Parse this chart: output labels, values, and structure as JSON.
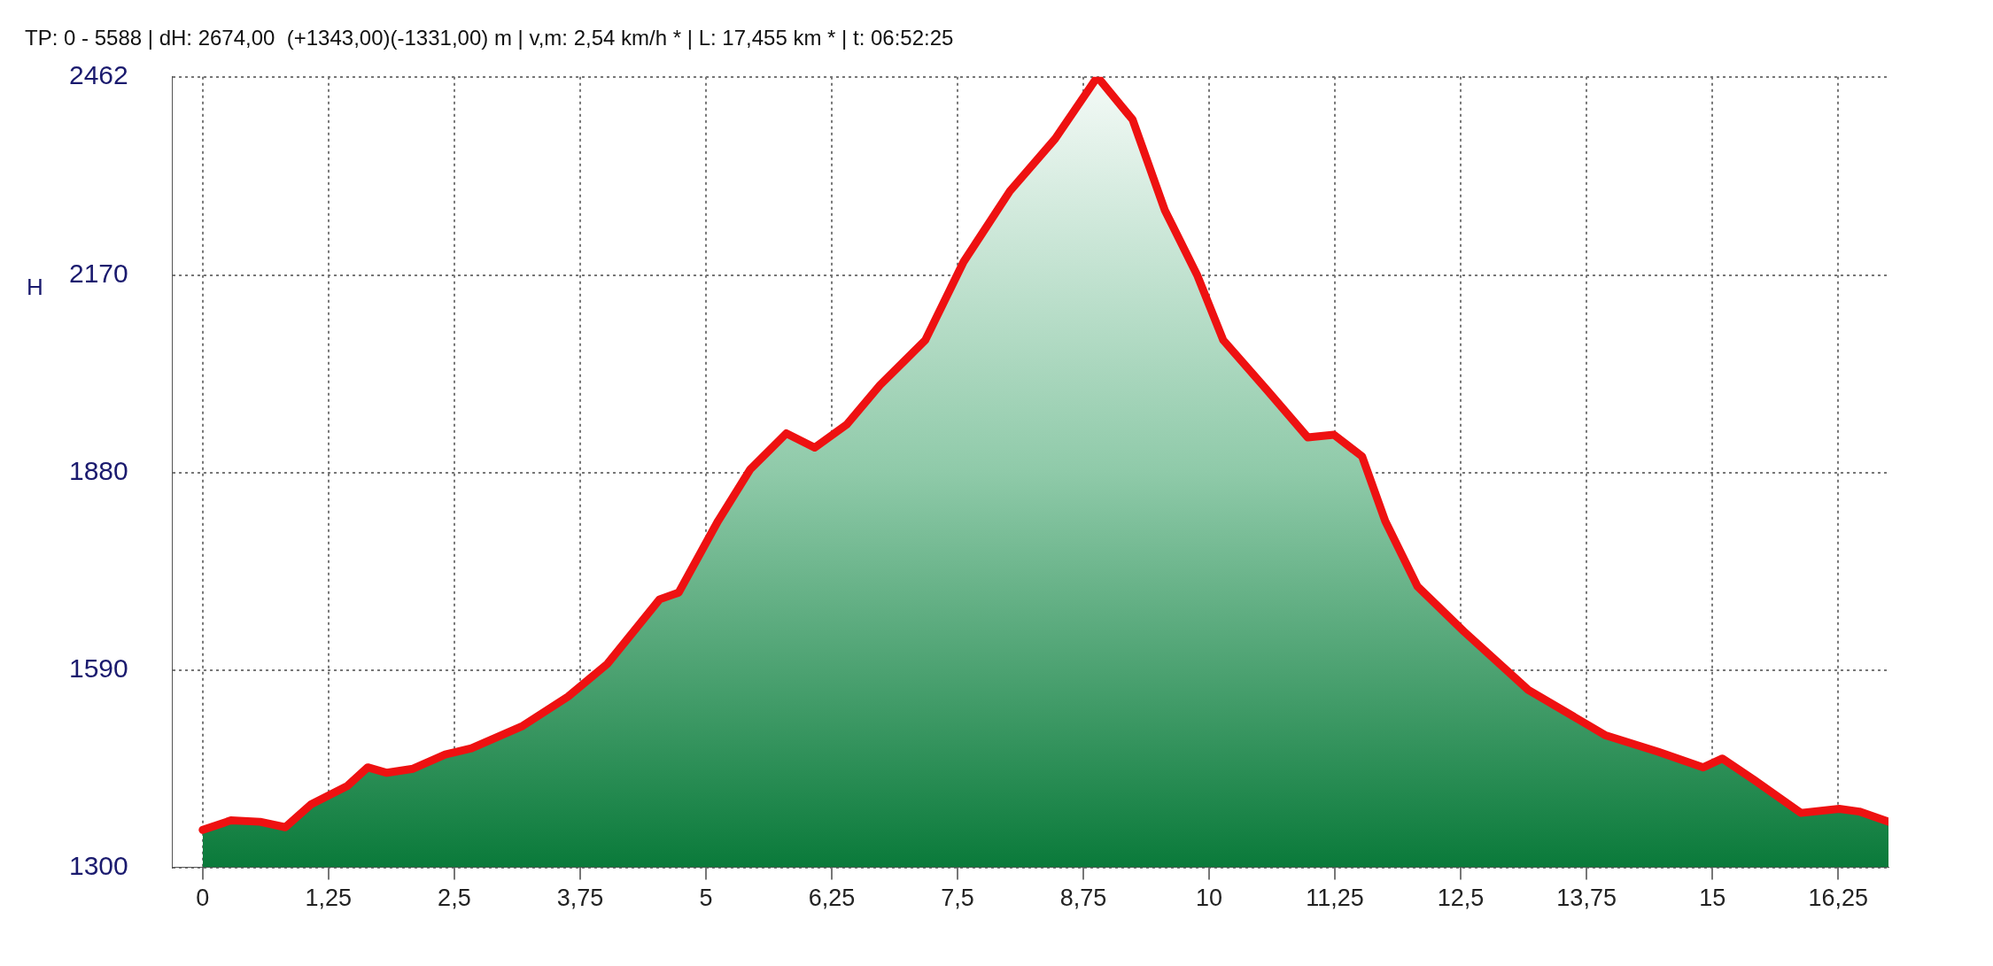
{
  "chart_data": {
    "type": "area",
    "title": "TP: 0 - 5588 | dH: 2674,00  (+1343,00)(-1331,00) m | v,m: 2,54 km/h * | L: 17,455 km * | t: 06:52:25",
    "ylabel": "H",
    "x": [
      0,
      0.28,
      0.57,
      0.82,
      1.08,
      1.44,
      1.64,
      1.83,
      2.09,
      2.41,
      2.67,
      3.18,
      3.63,
      4.02,
      4.54,
      4.73,
      5.12,
      5.44,
      5.8,
      6.08,
      6.4,
      6.73,
      7.18,
      7.56,
      8.02,
      8.47,
      8.89,
      9.24,
      9.56,
      9.88,
      10.14,
      10.59,
      10.98,
      11.24,
      11.52,
      11.75,
      12.07,
      12.53,
      13.17,
      13.94,
      14.46,
      14.91,
      15.1,
      15.42,
      15.88,
      16.26,
      16.46,
      16.75
    ],
    "series": [
      {
        "color": "#ee1111",
        "values": [
          1355,
          1369,
          1367,
          1359,
          1393,
          1420,
          1447,
          1439,
          1445,
          1466,
          1475,
          1508,
          1551,
          1599,
          1694,
          1704,
          1809,
          1885,
          1938,
          1917,
          1951,
          2009,
          2075,
          2190,
          2294,
          2371,
          2462,
          2399,
          2266,
          2171,
          2075,
          1999,
          1932,
          1936,
          1904,
          1809,
          1713,
          1647,
          1561,
          1494,
          1470,
          1447,
          1460,
          1428,
          1380,
          1386,
          1382,
          1367
        ]
      }
    ],
    "xlim": [
      -0.3,
      16.75
    ],
    "xticks": [
      0,
      {
        "value": 1.25,
        "label": "1,25"
      },
      {
        "value": 2.5,
        "label": "2,5"
      },
      {
        "value": 3.75,
        "label": "3,75"
      },
      5,
      {
        "value": 6.25,
        "label": "6,25"
      },
      {
        "value": 7.5,
        "label": "7,5"
      },
      {
        "value": 8.75,
        "label": "8,75"
      },
      10,
      {
        "value": 11.25,
        "label": "11,25"
      },
      {
        "value": 12.5,
        "label": "12,5"
      },
      {
        "value": 13.75,
        "label": "13,75"
      },
      15,
      {
        "value": 16.25,
        "label": "16,25"
      }
    ],
    "ylim": [
      1300,
      2462
    ],
    "yticks": [
      1300,
      1590,
      1880,
      2170,
      2462
    ],
    "grid": true,
    "legend": false,
    "marker": "none",
    "line_style": "solid"
  }
}
